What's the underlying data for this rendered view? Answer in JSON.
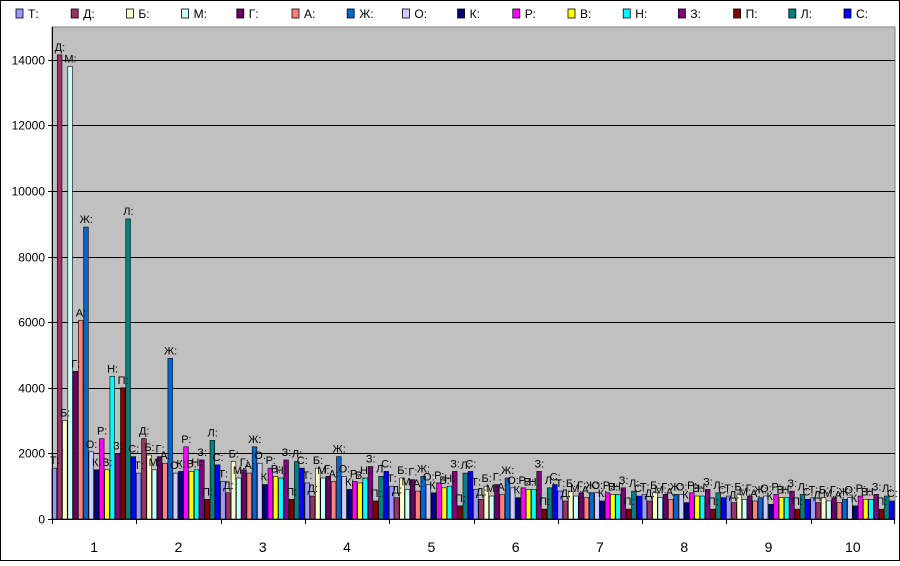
{
  "chart_data": {
    "type": "bar",
    "title": "",
    "xlabel": "",
    "ylabel": "",
    "ylim": [
      0,
      15000
    ],
    "yticks": [
      0,
      2000,
      4000,
      6000,
      8000,
      10000,
      12000,
      14000
    ],
    "grid": true,
    "legend_position": "top",
    "categories": [
      "1",
      "2",
      "3",
      "4",
      "5",
      "6",
      "7",
      "8",
      "9",
      "10"
    ],
    "series": [
      {
        "name": "Т:",
        "color": "#9999ff",
        "values": [
          1550,
          1400,
          1150,
          1100,
          1000,
          900,
          850,
          750,
          700,
          650
        ]
      },
      {
        "name": "Д:",
        "color": "#993366",
        "values": [
          14150,
          2450,
          800,
          700,
          650,
          600,
          550,
          550,
          500,
          500
        ]
      },
      {
        "name": "Б:",
        "color": "#ffffcc",
        "values": [
          3000,
          1950,
          1750,
          1550,
          1250,
          1000,
          850,
          800,
          750,
          650
        ]
      },
      {
        "name": "М:",
        "color": "#ccffff",
        "values": [
          13800,
          1500,
          1250,
          1250,
          900,
          700,
          700,
          650,
          600,
          550
        ]
      },
      {
        "name": "Г:",
        "color": "#660066",
        "values": [
          4500,
          1900,
          1500,
          1300,
          1200,
          1050,
          800,
          750,
          700,
          650
        ]
      },
      {
        "name": "А:",
        "color": "#ff8080",
        "values": [
          6050,
          1700,
          1400,
          1150,
          850,
          750,
          650,
          600,
          550,
          500
        ]
      },
      {
        "name": "Ж:",
        "color": "#0066cc",
        "values": [
          8900,
          4900,
          2200,
          1900,
          1300,
          1250,
          800,
          750,
          650,
          600
        ]
      },
      {
        "name": "О:",
        "color": "#ccccff",
        "values": [
          2050,
          1400,
          1700,
          1300,
          1050,
          950,
          800,
          750,
          700,
          650
        ]
      },
      {
        "name": "К:",
        "color": "#000080",
        "values": [
          1500,
          1450,
          1050,
          900,
          800,
          650,
          550,
          500,
          450,
          400
        ]
      },
      {
        "name": "Р:",
        "color": "#ff00ff",
        "values": [
          2450,
          2200,
          1550,
          1150,
          1100,
          950,
          800,
          800,
          750,
          700
        ]
      },
      {
        "name": "В:",
        "color": "#ffff00",
        "values": [
          1500,
          1450,
          1300,
          1100,
          950,
          900,
          750,
          700,
          650,
          600
        ]
      },
      {
        "name": "Н:",
        "color": "#00ffff",
        "values": [
          4350,
          1500,
          1250,
          1250,
          1000,
          900,
          750,
          700,
          650,
          600
        ]
      },
      {
        "name": "З:",
        "color": "#800080",
        "values": [
          2000,
          1800,
          1800,
          1600,
          1450,
          1450,
          950,
          900,
          850,
          750
        ]
      },
      {
        "name": "П:",
        "color": "#800000",
        "values": [
          4000,
          600,
          600,
          550,
          400,
          300,
          300,
          300,
          300,
          300
        ]
      },
      {
        "name": "Л:",
        "color": "#008080",
        "values": [
          9150,
          2400,
          1750,
          1300,
          1400,
          950,
          850,
          800,
          750,
          700
        ]
      },
      {
        "name": "С:",
        "color": "#0000ff",
        "values": [
          1900,
          1650,
          1550,
          1450,
          1450,
          1050,
          700,
          650,
          600,
          550
        ]
      }
    ]
  }
}
